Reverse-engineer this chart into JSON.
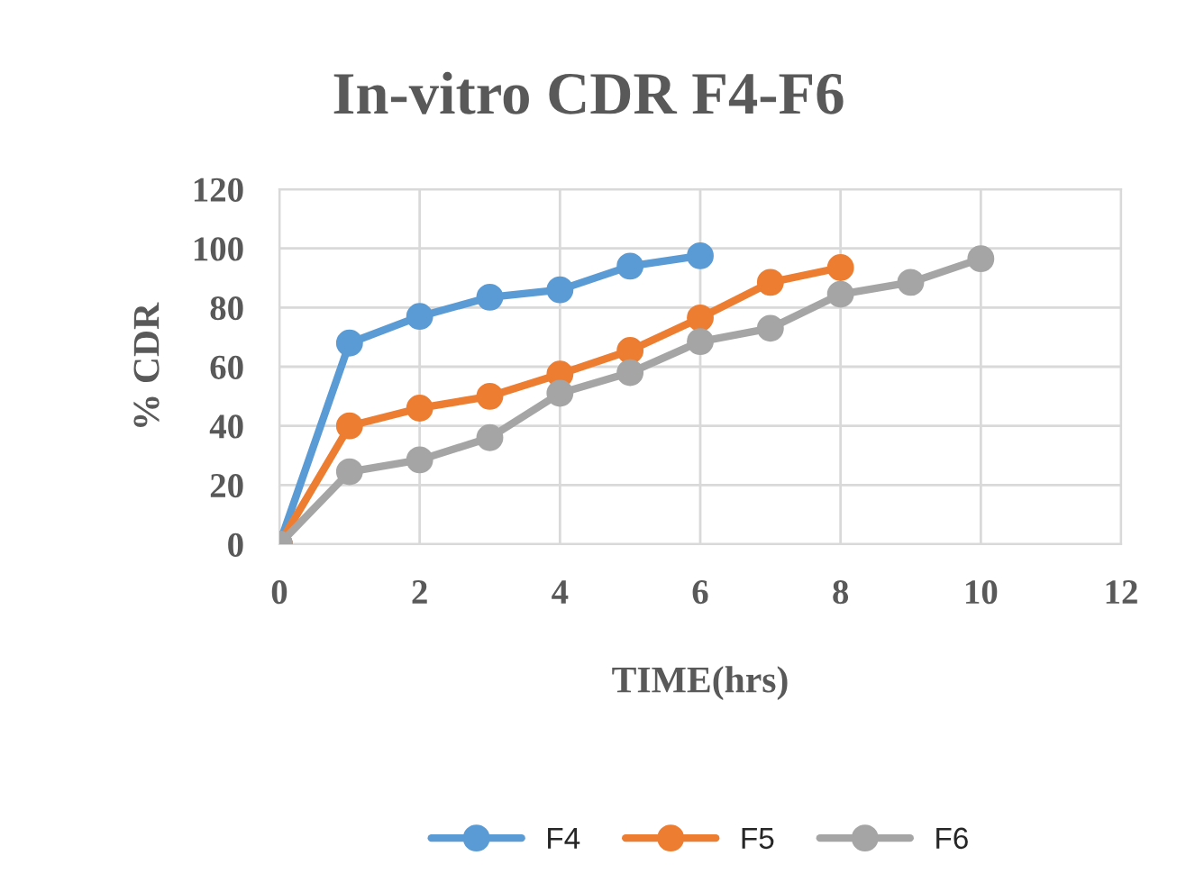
{
  "chart_data": {
    "type": "line",
    "title": "In-vitro CDR F4-F6",
    "xlabel": "TIME(hrs)",
    "ylabel": "% CDR",
    "series": [
      {
        "name": "F4",
        "color": "#5b9bd5",
        "x": [
          0,
          1,
          2,
          3,
          4,
          5,
          6
        ],
        "values": [
          0,
          68,
          77,
          83.5,
          86,
          94,
          97.5
        ]
      },
      {
        "name": "F5",
        "color": "#ed7d31",
        "x": [
          0,
          1,
          2,
          3,
          4,
          5,
          6,
          7,
          8
        ],
        "values": [
          0,
          40,
          46,
          50,
          57.5,
          65.5,
          76.5,
          88.5,
          93.5
        ]
      },
      {
        "name": "F6",
        "color": "#a5a5a5",
        "x": [
          0,
          1,
          2,
          3,
          4,
          5,
          6,
          7,
          8,
          9,
          10
        ],
        "values": [
          0,
          24.5,
          28.5,
          36,
          51,
          58,
          68.5,
          73,
          84.5,
          88.5,
          96.5
        ]
      }
    ],
    "xlim": [
      0,
      12
    ],
    "xticks": [
      0,
      2,
      4,
      6,
      8,
      10,
      12
    ],
    "ylim": [
      0,
      120
    ],
    "yticks": [
      0,
      20,
      40,
      60,
      80,
      100,
      120
    ],
    "grid": true,
    "legend": "bottom",
    "marker": "circle",
    "line_style": "solid"
  }
}
